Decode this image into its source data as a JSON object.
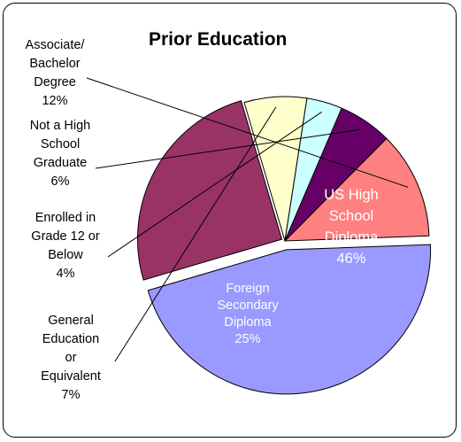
{
  "chart_data": {
    "type": "pie",
    "title": "Prior Education",
    "slices": [
      {
        "name": "US High School Diploma",
        "value": 46,
        "label": [
          "US High",
          "School",
          "Diploma",
          "46%"
        ],
        "color": "#9999ff"
      },
      {
        "name": "Foreign Secondary Diploma",
        "value": 25,
        "label": [
          "Foreign",
          "Secondary",
          "Diploma",
          "25%"
        ],
        "color": "#993366"
      },
      {
        "name": "General Education or Equivalent",
        "value": 7,
        "label": [
          "General",
          "Education",
          "or",
          "Equivalent",
          "7%"
        ],
        "color": "#ffffcc"
      },
      {
        "name": "Enrolled in Grade 12 or Below",
        "value": 4,
        "label": [
          "Enrolled in",
          "Grade 12 or",
          "Below",
          "4%"
        ],
        "color": "#ccffff"
      },
      {
        "name": "Not a High School Graduate",
        "value": 6,
        "label": [
          "Not a High",
          "School",
          "Graduate",
          "6%"
        ],
        "color": "#660066"
      },
      {
        "name": "Associate/ Bachelor Degree",
        "value": 12,
        "label": [
          "Associate/",
          "Bachelor",
          "Degree",
          "12%"
        ],
        "color": "#ff8080"
      }
    ]
  }
}
